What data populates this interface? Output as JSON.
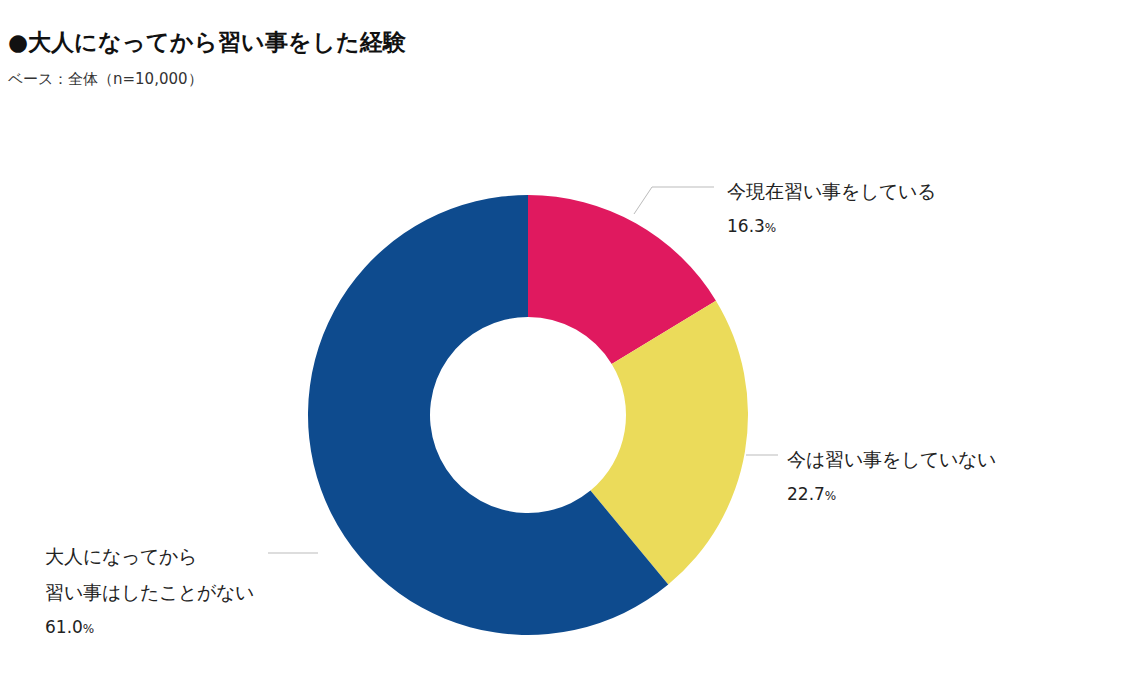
{
  "chart_data": {
    "type": "pie",
    "title": "●大人になってから習い事をした経験",
    "subtitle": "ベース：全体（n=10,000）",
    "categories": [
      "今現在習い事をしている",
      "今は習い事をしていない",
      "大人になってから\n習い事はしたことがない"
    ],
    "values": [
      16.3,
      22.7,
      61.0
    ],
    "value_labels": [
      "16.3%",
      "22.7%",
      "61.0%"
    ],
    "colors": [
      "#e0195f",
      "#ebdb5a",
      "#0e4b8e"
    ],
    "data_labels": true
  }
}
